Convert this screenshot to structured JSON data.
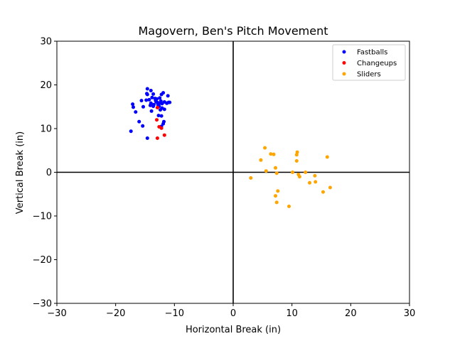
{
  "chart_data": {
    "type": "scatter",
    "title": "Magovern, Ben's Pitch Movement",
    "xlabel": "Horizontal Break (in)",
    "ylabel": "Vertical Break (in)",
    "xlim": [
      -30,
      30
    ],
    "ylim": [
      -30,
      30
    ],
    "xticks": [
      -30,
      -20,
      -10,
      0,
      10,
      20,
      30
    ],
    "yticks": [
      -30,
      -20,
      -10,
      0,
      10,
      20,
      30
    ],
    "grid": false,
    "zero_lines": true,
    "legend_position": "top-right",
    "series": [
      {
        "name": "Fastballs",
        "color": "#0000ff",
        "points": [
          [
            -14.6,
            19.1
          ],
          [
            -14.0,
            18.7
          ],
          [
            -13.6,
            17.9
          ],
          [
            -14.7,
            18.0
          ],
          [
            -14.6,
            17.8
          ],
          [
            -11.9,
            18.2
          ],
          [
            -12.2,
            17.8
          ],
          [
            -11.1,
            17.5
          ],
          [
            -13.8,
            17.1
          ],
          [
            -13.3,
            16.9
          ],
          [
            -12.5,
            17.0
          ],
          [
            -13.2,
            16.4
          ],
          [
            -14.3,
            16.6
          ],
          [
            -14.8,
            16.5
          ],
          [
            -15.6,
            16.4
          ],
          [
            -13.1,
            16.1
          ],
          [
            -12.9,
            16.0
          ],
          [
            -12.3,
            16.3
          ],
          [
            -11.7,
            16.1
          ],
          [
            -11.3,
            15.8
          ],
          [
            -11.0,
            16.0
          ],
          [
            -10.8,
            16.0
          ],
          [
            -14.0,
            15.8
          ],
          [
            -13.5,
            15.5
          ],
          [
            -12.8,
            15.5
          ],
          [
            -12.1,
            15.7
          ],
          [
            -17.1,
            15.6
          ],
          [
            -17.0,
            14.9
          ],
          [
            -14.1,
            15.3
          ],
          [
            -13.6,
            15.1
          ],
          [
            -12.6,
            15.1
          ],
          [
            -15.3,
            15.0
          ],
          [
            -12.1,
            14.7
          ],
          [
            -11.7,
            14.4
          ],
          [
            -12.4,
            14.3
          ],
          [
            -13.9,
            14.0
          ],
          [
            -16.6,
            13.8
          ],
          [
            -12.7,
            13.0
          ],
          [
            -12.2,
            12.9
          ],
          [
            -16.0,
            11.6
          ],
          [
            -11.8,
            11.6
          ],
          [
            -11.9,
            11.1
          ],
          [
            -15.4,
            10.6
          ],
          [
            -12.2,
            10.5
          ],
          [
            -17.4,
            9.4
          ],
          [
            -14.6,
            7.8
          ],
          [
            -12.6,
            15.7
          ],
          [
            -13.0,
            16.8
          ]
        ]
      },
      {
        "name": "Changeups",
        "color": "#ff0000",
        "points": [
          [
            -12.9,
            14.8
          ],
          [
            -13.0,
            12.0
          ],
          [
            -12.6,
            10.4
          ],
          [
            -12.2,
            10.1
          ],
          [
            -11.7,
            8.5
          ],
          [
            -12.9,
            7.8
          ]
        ]
      },
      {
        "name": "Sliders",
        "color": "#ffa500",
        "points": [
          [
            5.4,
            5.6
          ],
          [
            10.9,
            4.6
          ],
          [
            10.8,
            4.0
          ],
          [
            6.4,
            4.2
          ],
          [
            6.9,
            4.1
          ],
          [
            16.0,
            3.5
          ],
          [
            4.7,
            2.8
          ],
          [
            10.8,
            2.6
          ],
          [
            7.2,
            1.0
          ],
          [
            5.6,
            0.3
          ],
          [
            7.4,
            -0.2
          ],
          [
            10.1,
            0.0
          ],
          [
            11.1,
            -0.5
          ],
          [
            12.3,
            0.0
          ],
          [
            11.3,
            -1.0
          ],
          [
            13.9,
            -0.8
          ],
          [
            3.0,
            -1.3
          ],
          [
            14.0,
            -2.2
          ],
          [
            13.0,
            -2.4
          ],
          [
            16.5,
            -3.5
          ],
          [
            15.3,
            -4.5
          ],
          [
            7.6,
            -4.3
          ],
          [
            7.2,
            -5.4
          ],
          [
            7.4,
            -6.9
          ],
          [
            9.5,
            -7.8
          ]
        ]
      }
    ]
  }
}
